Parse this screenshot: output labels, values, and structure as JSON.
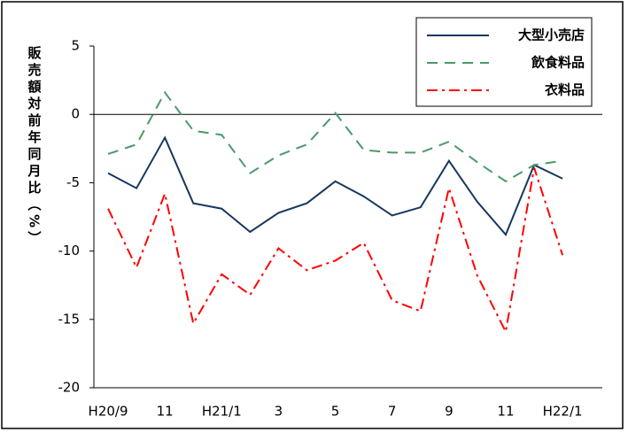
{
  "chart_data": {
    "type": "line",
    "y_label": "販売額対前年同月比（%）",
    "categories": [
      "H20/9",
      null,
      "11",
      null,
      "H21/1",
      null,
      "3",
      null,
      "5",
      null,
      "7",
      null,
      "9",
      null,
      "11",
      null,
      "H22/1"
    ],
    "series": [
      {
        "name": "大型小売店",
        "color": "#17375e",
        "dash": "solid",
        "values": [
          -4.3,
          -5.4,
          -1.7,
          -6.5,
          -6.9,
          -8.6,
          -7.2,
          -6.5,
          -4.9,
          -6.0,
          -7.4,
          -6.8,
          -3.4,
          -6.4,
          -8.8,
          -3.7,
          -4.7
        ]
      },
      {
        "name": "飲食料品",
        "color": "#4a9a6a",
        "dash": "dash",
        "values": [
          -2.9,
          -2.2,
          1.6,
          -1.2,
          -1.5,
          -4.3,
          -3.0,
          -2.2,
          0.1,
          -2.6,
          -2.8,
          -2.8,
          -2.0,
          -3.5,
          -4.9,
          -3.7,
          -3.4
        ]
      },
      {
        "name": "衣料品",
        "color": "#ff0000",
        "dash": "dashdot",
        "values": [
          -6.9,
          -11.2,
          -5.8,
          -15.3,
          -11.7,
          -13.2,
          -9.8,
          -11.4,
          -10.7,
          -9.4,
          -13.6,
          -14.4,
          -5.4,
          -11.8,
          -15.9,
          -3.9,
          -10.3
        ]
      }
    ],
    "ylim": [
      -20,
      5
    ],
    "yticks": [
      -20,
      -15,
      -10,
      -5,
      0,
      5
    ],
    "zero_line": true,
    "legend": "upper right"
  }
}
